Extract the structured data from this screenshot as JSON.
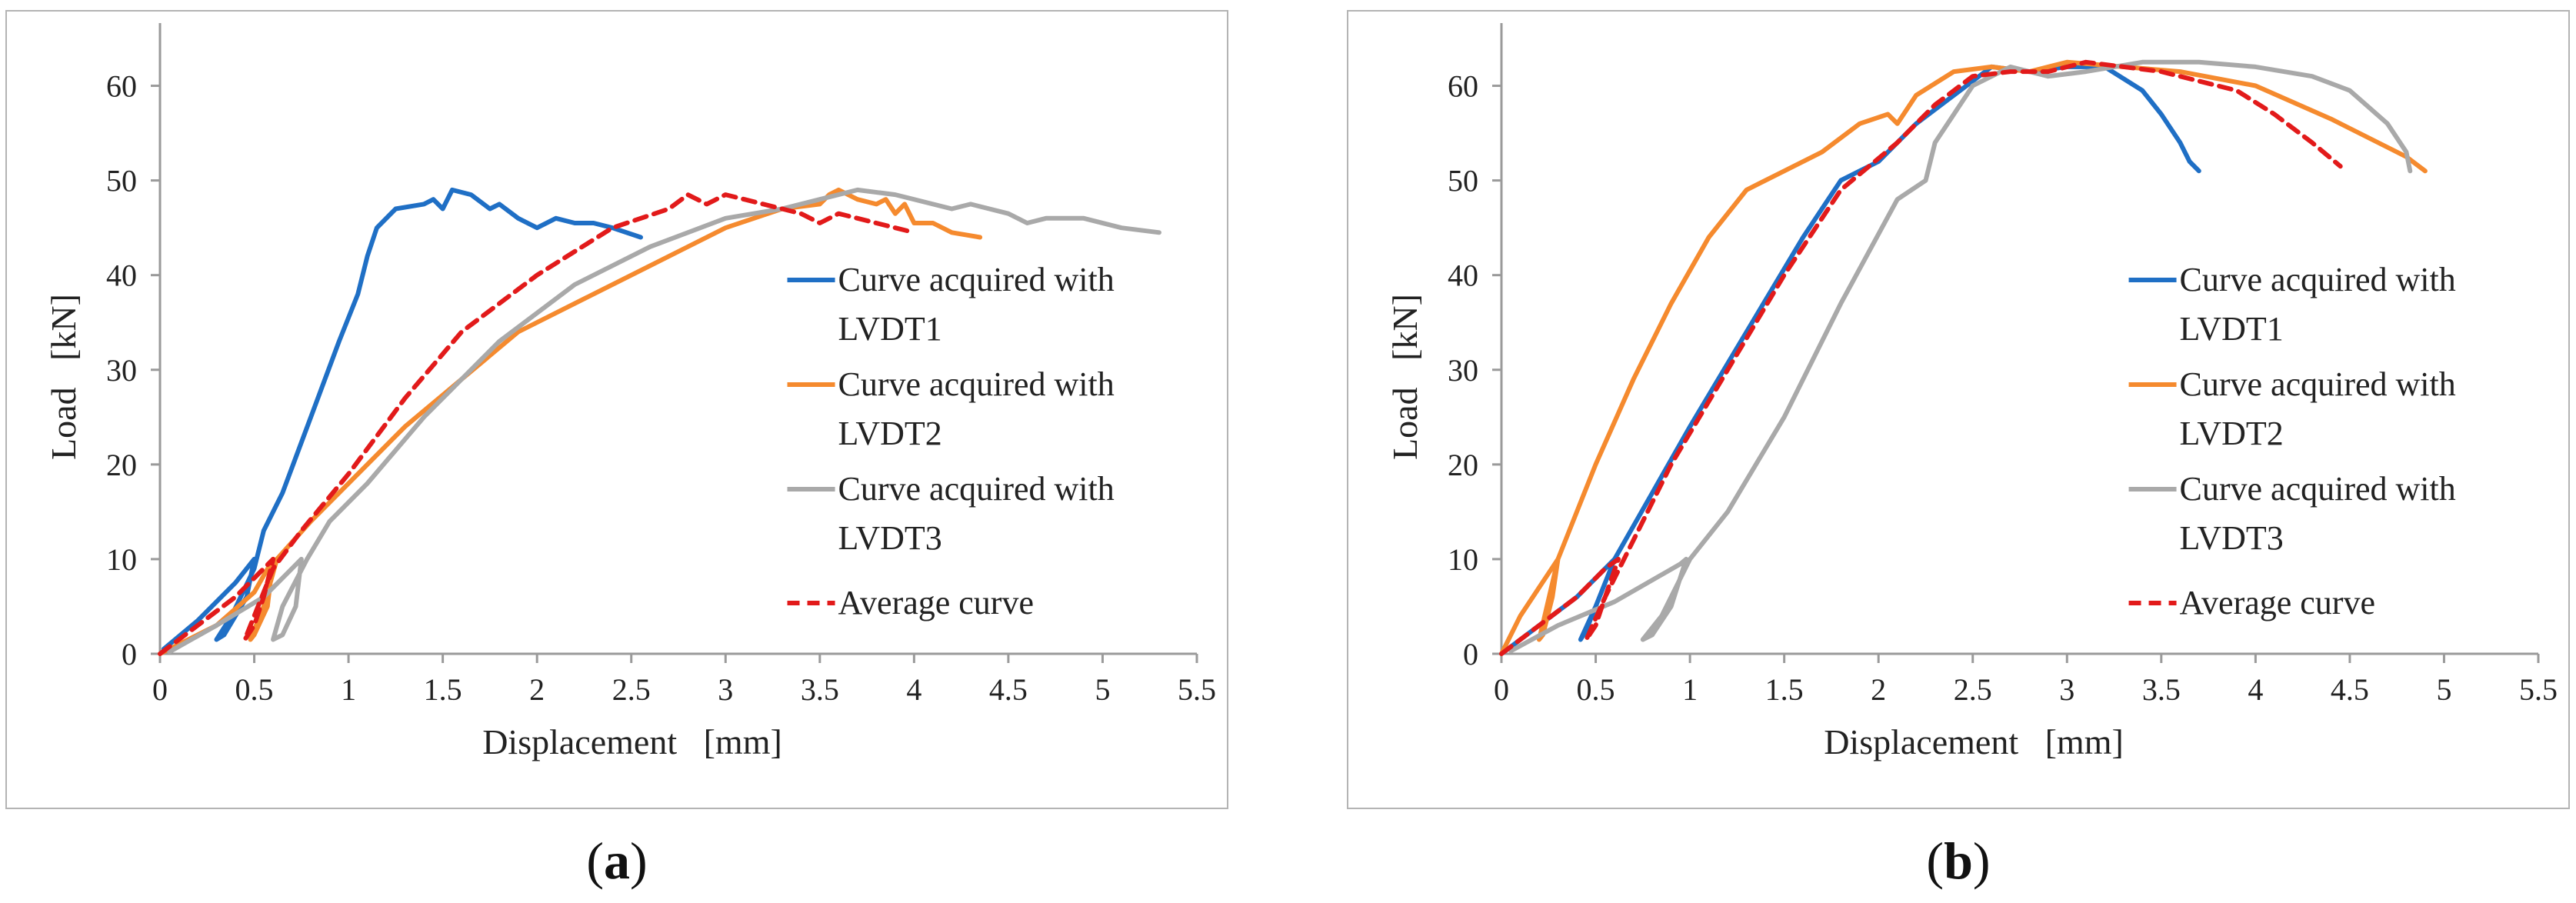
{
  "colors": {
    "lvdt1": "#1f6fc5",
    "lvdt2": "#f58a2e",
    "lvdt3": "#a9a9a9",
    "average": "#e21a1a",
    "axis": "#9a9a9a",
    "frame": "#b4b4b4"
  },
  "chart_data": [
    {
      "type": "line",
      "panel_label_open": "(",
      "panel_label_letter": "a",
      "panel_label_close": ")",
      "xlabel": "Displacement   [mm]",
      "ylabel": "Load   [kN]",
      "xlim": [
        0,
        5.5
      ],
      "ylim": [
        0,
        65
      ],
      "xticks": [
        "0",
        "0.5",
        "1",
        "1.5",
        "2",
        "2.5",
        "3",
        "3.5",
        "4",
        "4.5",
        "5",
        "5.5"
      ],
      "yticks": [
        "0",
        "10",
        "20",
        "30",
        "40",
        "50",
        "60"
      ],
      "legend": {
        "position": "right",
        "entries": [
          {
            "line1": "Curve acquired with",
            "line2": "LVDT1"
          },
          {
            "line1": "Curve acquired with",
            "line2": "LVDT2"
          },
          {
            "line1": "Curve acquired with",
            "line2": "LVDT3"
          },
          {
            "line1": "Average curve",
            "line2": ""
          }
        ]
      },
      "series": [
        {
          "name": "Curve acquired with LVDT1",
          "x": [
            0.02,
            0.2,
            0.4,
            0.5,
            0.46,
            0.34,
            0.3,
            0.38,
            0.5,
            0.55,
            0.65,
            0.8,
            0.95,
            1.05,
            1.1,
            1.15,
            1.25,
            1.4,
            1.45,
            1.5,
            1.55,
            1.65,
            1.75,
            1.8,
            1.9,
            2.0,
            2.1,
            2.2,
            2.3,
            2.4,
            2.55
          ],
          "y": [
            0.5,
            3.5,
            7.5,
            10,
            6,
            2,
            1.5,
            4,
            9,
            13,
            17,
            25,
            33,
            38,
            42,
            45,
            47,
            47.5,
            48,
            47,
            49,
            48.5,
            47,
            47.5,
            46,
            45,
            46,
            45.5,
            45.5,
            45,
            44
          ]
        },
        {
          "name": "Curve acquired with LVDT2",
          "x": [
            0.0,
            0.3,
            0.5,
            0.6,
            0.57,
            0.5,
            0.48,
            0.55,
            0.62,
            0.8,
            1.0,
            1.3,
            1.6,
            1.9,
            2.2,
            2.6,
            3.0,
            3.3,
            3.5,
            3.55,
            3.6,
            3.7,
            3.8,
            3.85,
            3.9,
            3.95,
            4.0,
            4.1,
            4.2,
            4.35
          ],
          "y": [
            0.0,
            3,
            6.5,
            10,
            5,
            2,
            1.5,
            5,
            10,
            14,
            18,
            24,
            29,
            34,
            37,
            41,
            45,
            47,
            47.5,
            48.5,
            49,
            48,
            47.5,
            48,
            46.5,
            47.5,
            45.5,
            45.5,
            44.5,
            44
          ]
        },
        {
          "name": "Curve acquired with LVDT3",
          "x": [
            0.05,
            0.3,
            0.55,
            0.75,
            0.72,
            0.65,
            0.6,
            0.65,
            0.78,
            0.9,
            1.1,
            1.4,
            1.8,
            2.2,
            2.6,
            3.0,
            3.3,
            3.5,
            3.7,
            3.9,
            4.1,
            4.2,
            4.3,
            4.5,
            4.6,
            4.7,
            4.9,
            5.1,
            5.3
          ],
          "y": [
            0.2,
            3,
            6,
            10,
            5,
            2,
            1.5,
            5,
            10,
            14,
            18,
            25,
            33,
            39,
            43,
            46,
            47,
            48,
            49,
            48.5,
            47.5,
            47,
            47.5,
            46.5,
            45.5,
            46,
            46,
            45,
            44.5
          ]
        },
        {
          "name": "Average curve",
          "x": [
            0.0,
            0.2,
            0.4,
            0.55,
            0.6,
            0.55,
            0.5,
            0.45,
            0.5,
            0.6,
            0.75,
            1.0,
            1.3,
            1.6,
            2.0,
            2.4,
            2.7,
            2.8,
            2.9,
            3.0,
            3.1,
            3.2,
            3.3,
            3.4,
            3.5,
            3.6,
            3.7,
            3.8,
            3.9,
            4.0
          ],
          "y": [
            0.0,
            3,
            6,
            9,
            10,
            6,
            3,
            1.5,
            4,
            9,
            13,
            19,
            27,
            34,
            40,
            45,
            47,
            48.5,
            47.5,
            48.5,
            48,
            47.5,
            47,
            46.5,
            45.5,
            46.5,
            46,
            45.5,
            45,
            44.5
          ]
        }
      ]
    },
    {
      "type": "line",
      "panel_label_open": "(",
      "panel_label_letter": "b",
      "panel_label_close": ")",
      "xlabel": "Displacement   [mm]",
      "ylabel": "Load   [kN]",
      "xlim": [
        0,
        5.5
      ],
      "ylim": [
        0,
        65
      ],
      "xticks": [
        "0",
        "0.5",
        "1",
        "1.5",
        "2",
        "2.5",
        "3",
        "3.5",
        "4",
        "4.5",
        "5",
        "5.5"
      ],
      "yticks": [
        "0",
        "10",
        "20",
        "30",
        "40",
        "50",
        "60"
      ],
      "legend": {
        "position": "right",
        "entries": [
          {
            "line1": "Curve acquired with",
            "line2": "LVDT1"
          },
          {
            "line1": "Curve acquired with",
            "line2": "LVDT2"
          },
          {
            "line1": "Curve acquired with",
            "line2": "LVDT3"
          },
          {
            "line1": "Average curve",
            "line2": ""
          }
        ]
      },
      "series": [
        {
          "name": "Curve acquired with LVDT1",
          "x": [
            0.0,
            0.2,
            0.4,
            0.55,
            0.6,
            0.52,
            0.45,
            0.42,
            0.5,
            0.6,
            0.8,
            1.0,
            1.3,
            1.6,
            1.8,
            2.0,
            2.2,
            2.4,
            2.6,
            2.8,
            3.0,
            3.2,
            3.4,
            3.5,
            3.6,
            3.65,
            3.7
          ],
          "y": [
            0.0,
            3,
            6,
            9,
            10,
            6,
            2.5,
            1.5,
            5,
            10,
            17,
            24,
            34,
            44,
            50,
            52,
            56,
            59,
            62,
            61.5,
            62,
            62,
            59.5,
            57,
            54,
            52,
            51
          ]
        },
        {
          "name": "Curve acquired with LVDT2",
          "x": [
            0.0,
            0.1,
            0.2,
            0.3,
            0.27,
            0.22,
            0.2,
            0.3,
            0.5,
            0.7,
            0.9,
            1.1,
            1.3,
            1.5,
            1.7,
            1.9,
            2.05,
            2.1,
            2.2,
            2.4,
            2.6,
            2.8,
            3.0,
            3.3,
            3.6,
            4.0,
            4.4,
            4.7,
            4.8,
            4.9
          ],
          "y": [
            0.0,
            4,
            7,
            10,
            6,
            2,
            1.5,
            10,
            20,
            29,
            37,
            44,
            49,
            51,
            53,
            56,
            57,
            56,
            59,
            61.5,
            62,
            61.5,
            62.5,
            62,
            61.5,
            60,
            56.5,
            53.5,
            52.5,
            51
          ]
        },
        {
          "name": "Curve acquired with LVDT3",
          "x": [
            0.05,
            0.3,
            0.6,
            0.95,
            0.98,
            0.9,
            0.8,
            0.75,
            0.85,
            1.0,
            1.2,
            1.5,
            1.8,
            2.1,
            2.25,
            2.3,
            2.4,
            2.5,
            2.7,
            2.9,
            3.1,
            3.4,
            3.7,
            4.0,
            4.3,
            4.5,
            4.7,
            4.8,
            4.82
          ],
          "y": [
            0.3,
            3,
            5.5,
            9.5,
            10,
            5,
            2,
            1.5,
            4,
            10,
            15,
            25,
            37,
            48,
            50,
            54,
            57,
            60,
            62,
            61,
            61.5,
            62.5,
            62.5,
            62,
            61,
            59.5,
            56,
            53,
            51
          ]
        },
        {
          "name": "Average curve",
          "x": [
            0.0,
            0.2,
            0.4,
            0.55,
            0.62,
            0.55,
            0.5,
            0.45,
            0.55,
            0.7,
            0.9,
            1.2,
            1.5,
            1.8,
            2.1,
            2.3,
            2.5,
            2.7,
            2.9,
            3.1,
            3.3,
            3.5,
            3.7,
            3.9,
            4.1,
            4.3,
            4.45
          ],
          "y": [
            0.0,
            3,
            6,
            9,
            10,
            6,
            3,
            1.5,
            6,
            12,
            20,
            30,
            40,
            49,
            54,
            58,
            61,
            61.5,
            61.5,
            62.5,
            62,
            61.5,
            60.5,
            59.5,
            57,
            54,
            51.5
          ]
        }
      ]
    }
  ]
}
